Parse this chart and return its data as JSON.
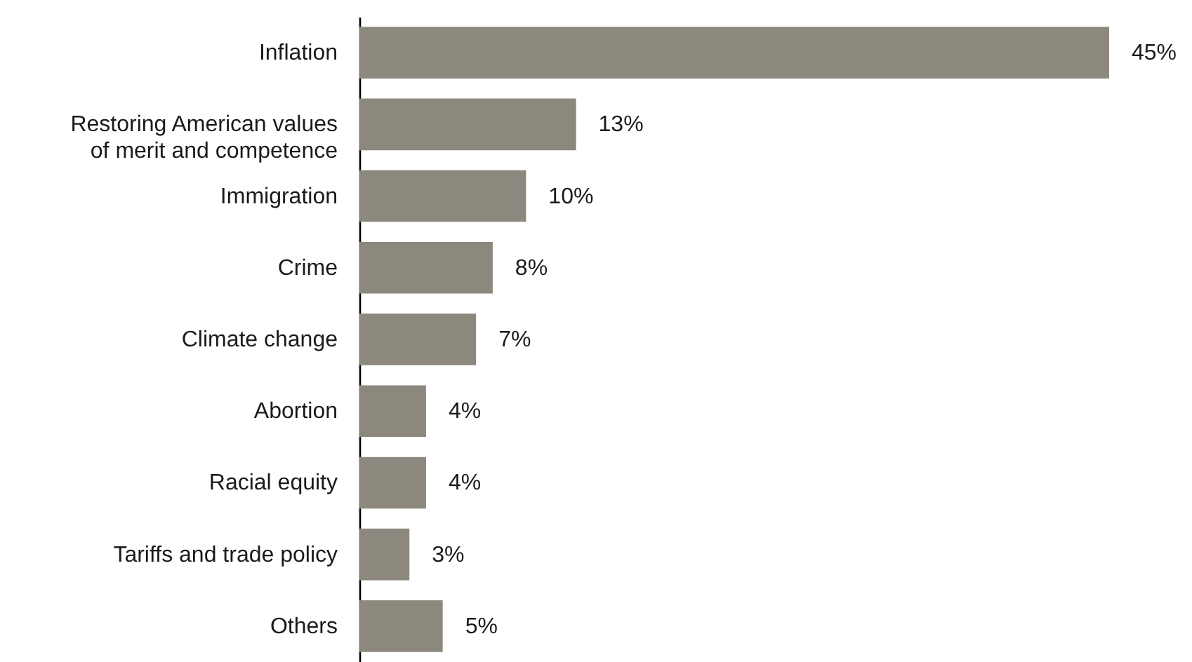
{
  "chart_data": {
    "type": "bar",
    "orientation": "horizontal",
    "categories": [
      "Inflation",
      "Restoring American values\nof merit and competence",
      "Immigration",
      "Crime",
      "Climate change",
      "Abortion",
      "Racial equity",
      "Tariffs and trade policy",
      "Others"
    ],
    "values": [
      45,
      13,
      10,
      8,
      7,
      4,
      4,
      3,
      5
    ],
    "value_labels": [
      "45%",
      "13%",
      "10%",
      "8%",
      "7%",
      "4%",
      "4%",
      "3%",
      "5%"
    ],
    "color": "#8c887e",
    "tick_labels": "y"
  }
}
